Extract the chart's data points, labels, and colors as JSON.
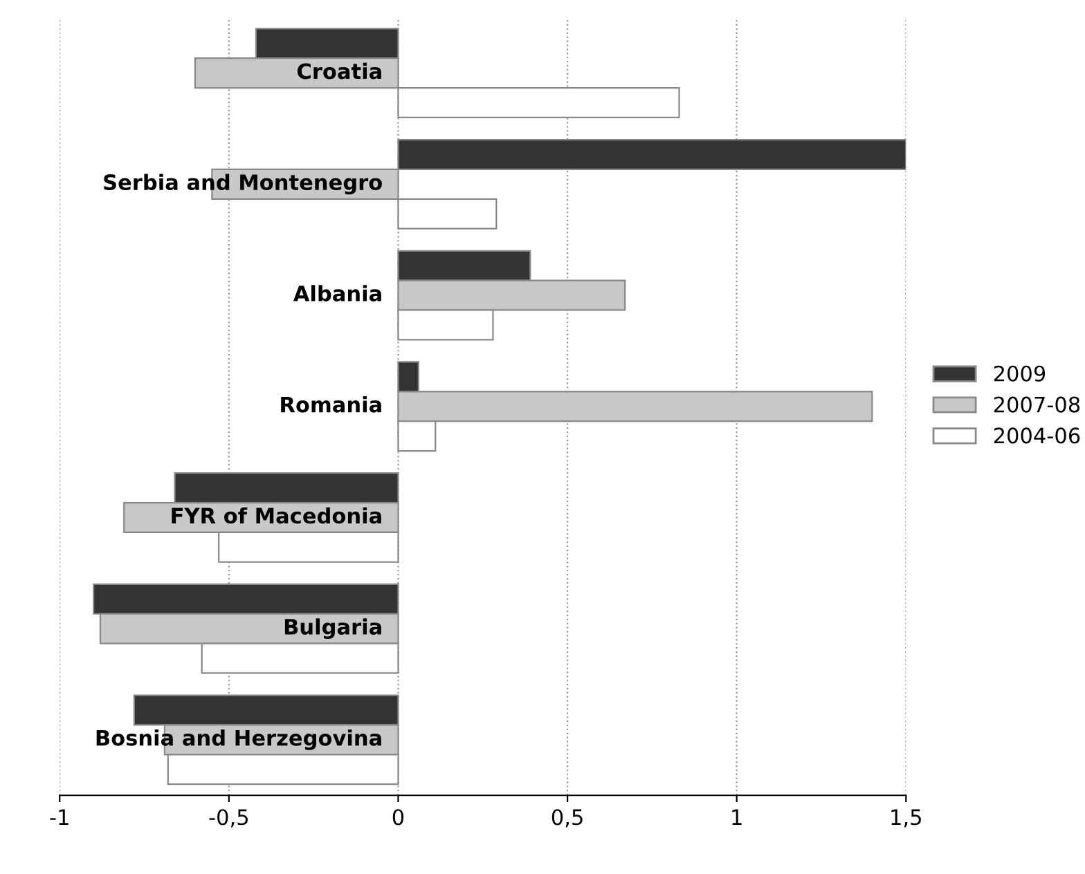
{
  "chart_data": {
    "type": "bar",
    "orientation": "horizontal",
    "categories": [
      "Croatia",
      "Serbia and Montenegro",
      "Albania",
      "Romania",
      "FYR of Macedonia",
      "Bulgaria",
      "Bosnia and Herzegovina"
    ],
    "series": [
      {
        "name": "2009",
        "color": "#333333",
        "values": [
          -0.42,
          1.5,
          0.39,
          0.06,
          -0.66,
          -0.9,
          -0.78
        ]
      },
      {
        "name": "2007-08",
        "color": "#c8c8c8",
        "values": [
          -0.6,
          -0.55,
          0.67,
          1.4,
          -0.81,
          -0.88,
          -0.69
        ]
      },
      {
        "name": "2004-06",
        "color": "#ffffff",
        "values": [
          0.83,
          0.29,
          0.28,
          0.11,
          -0.53,
          -0.58,
          -0.68
        ]
      }
    ],
    "xlim": [
      -1,
      1.5
    ],
    "xticks": [
      {
        "value": -1,
        "label": "-1"
      },
      {
        "value": -0.5,
        "label": "-0,5"
      },
      {
        "value": 0,
        "label": "0"
      },
      {
        "value": 0.5,
        "label": "0,5"
      },
      {
        "value": 1,
        "label": "1"
      },
      {
        "value": 1.5,
        "label": "1,5"
      }
    ],
    "grid": "x",
    "legend": "right"
  }
}
